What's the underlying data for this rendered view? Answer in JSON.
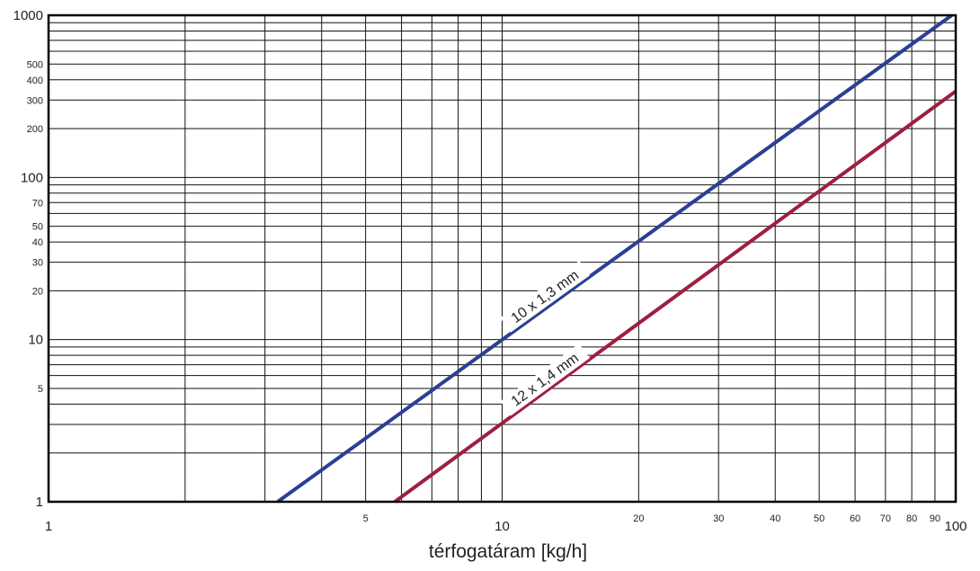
{
  "chart_data": {
    "type": "line",
    "scale": {
      "x": "log",
      "y": "log"
    },
    "xlim": [
      1,
      100
    ],
    "ylim": [
      1,
      1000
    ],
    "grid": true,
    "xlabel": "térfogatáram [kg/h]",
    "ylabel": "",
    "x_ticks": [
      {
        "value": 1,
        "label": "1",
        "major": true
      },
      {
        "value": 5,
        "label": "5",
        "major": false
      },
      {
        "value": 10,
        "label": "10",
        "major": true
      },
      {
        "value": 20,
        "label": "20",
        "major": false
      },
      {
        "value": 30,
        "label": "30",
        "major": false
      },
      {
        "value": 40,
        "label": "40",
        "major": false
      },
      {
        "value": 50,
        "label": "50",
        "major": false
      },
      {
        "value": 60,
        "label": "60",
        "major": false
      },
      {
        "value": 70,
        "label": "70",
        "major": false
      },
      {
        "value": 80,
        "label": "80",
        "major": false
      },
      {
        "value": 90,
        "label": "90",
        "major": false
      },
      {
        "value": 100,
        "label": "100",
        "major": true
      }
    ],
    "y_ticks": [
      {
        "value": 1,
        "label": "1",
        "major": true
      },
      {
        "value": 5,
        "label": "5",
        "major": false
      },
      {
        "value": 10,
        "label": "10",
        "major": true
      },
      {
        "value": 20,
        "label": "20",
        "major": false
      },
      {
        "value": 30,
        "label": "30",
        "major": false
      },
      {
        "value": 40,
        "label": "40",
        "major": false
      },
      {
        "value": 50,
        "label": "50",
        "major": false
      },
      {
        "value": 70,
        "label": "70",
        "major": false
      },
      {
        "value": 100,
        "label": "100",
        "major": true
      },
      {
        "value": 200,
        "label": "200",
        "major": false
      },
      {
        "value": 300,
        "label": "300",
        "major": false
      },
      {
        "value": 400,
        "label": "400",
        "major": false
      },
      {
        "value": 500,
        "label": "500",
        "major": false
      },
      {
        "value": 1000,
        "label": "1000",
        "major": true
      }
    ],
    "series": [
      {
        "name": "10 x 1,3 mm",
        "color": "#2b3f93",
        "x": [
          3.2,
          98
        ],
        "y": [
          1,
          1000
        ],
        "label_at_x": 12.8
      },
      {
        "name": "12 x 1,4 mm",
        "color": "#9e1f3f",
        "x": [
          5.8,
          100
        ],
        "y": [
          1,
          340
        ],
        "label_at_x": 12.8
      }
    ]
  }
}
